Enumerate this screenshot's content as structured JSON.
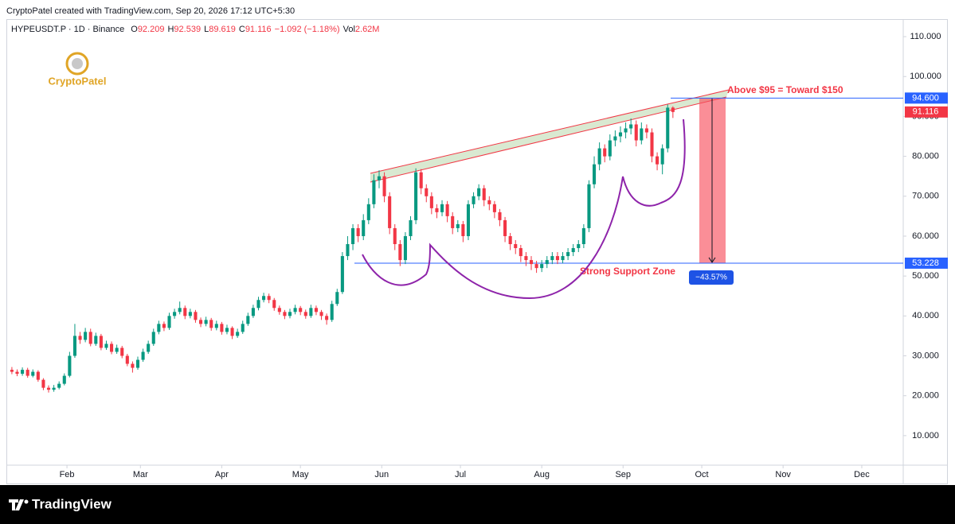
{
  "credit": "CryptoPatel created with TradingView.com, Sep 20, 2026 17:12 UTC+5:30",
  "brand": "CryptoPatel",
  "footer": "TradingView",
  "chart_data": {
    "type": "candlestick",
    "legend": {
      "symbol": "HYPEUSDT.P · 1D · Binance",
      "prefixes": [
        "O",
        "H",
        "L",
        "C"
      ],
      "change": "−1.092 (−1.18%)",
      "vol_label": "Vol",
      "vol": "2.62M"
    },
    "up_color": "#089981",
    "down_color": "#f23645",
    "grid": false,
    "xlim": [
      7.9,
      349.8
    ],
    "ylim": [
      2.6,
      114.4
    ],
    "xticks": [
      {
        "value": 31,
        "label": "Feb"
      },
      {
        "value": 59,
        "label": "Mar"
      },
      {
        "value": 90,
        "label": "Apr"
      },
      {
        "value": 120,
        "label": "May"
      },
      {
        "value": 151,
        "label": "Jun"
      },
      {
        "value": 181,
        "label": "Jul"
      },
      {
        "value": 212,
        "label": "Aug"
      },
      {
        "value": 243,
        "label": "Sep"
      },
      {
        "value": 273,
        "label": "Oct"
      },
      {
        "value": 304,
        "label": "Nov"
      },
      {
        "value": 334,
        "label": "Dec"
      }
    ],
    "yticks": [
      {
        "value": 10,
        "label": "10.000"
      },
      {
        "value": 20,
        "label": "20.000"
      },
      {
        "value": 30,
        "label": "30.000"
      },
      {
        "value": 40,
        "label": "40.000"
      },
      {
        "value": 50,
        "label": "50.000"
      },
      {
        "value": 60,
        "label": "60.000"
      },
      {
        "value": 70,
        "label": "70.000"
      },
      {
        "value": 80,
        "label": "80.000"
      },
      {
        "value": 90,
        "label": "90.000"
      },
      {
        "value": 100,
        "label": "100.000"
      },
      {
        "value": 110,
        "label": "110.000"
      }
    ],
    "x": [
      10,
      12,
      14,
      16,
      18,
      20,
      22,
      24,
      26,
      28,
      30,
      32,
      34,
      36,
      38,
      40,
      42,
      44,
      46,
      48,
      50,
      52,
      54,
      56,
      58,
      60,
      62,
      64,
      66,
      68,
      70,
      72,
      74,
      76,
      78,
      80,
      82,
      84,
      86,
      88,
      90,
      92,
      94,
      96,
      98,
      100,
      102,
      104,
      106,
      108,
      110,
      112,
      114,
      116,
      118,
      120,
      122,
      124,
      126,
      128,
      130,
      132,
      134,
      136,
      138,
      140,
      142,
      144,
      146,
      148,
      150,
      152,
      154,
      156,
      158,
      160,
      162,
      164,
      166,
      168,
      170,
      172,
      174,
      176,
      178,
      180,
      182,
      184,
      186,
      188,
      190,
      192,
      194,
      196,
      198,
      200,
      202,
      204,
      206,
      208,
      210,
      212,
      214,
      216,
      218,
      220,
      222,
      224,
      226,
      228,
      230,
      232,
      234,
      236,
      238,
      240,
      242,
      244,
      246,
      248,
      250,
      252,
      254,
      256,
      258,
      260,
      262
    ],
    "ohlc": [
      [
        26.5,
        27.2,
        25.4,
        26
      ],
      [
        26,
        26.6,
        24.9,
        25.5
      ],
      [
        25.5,
        27.1,
        25,
        26.5
      ],
      [
        26.5,
        27,
        24.5,
        25
      ],
      [
        25,
        26.6,
        24.6,
        26
      ],
      [
        26,
        26.4,
        23.5,
        24
      ],
      [
        24,
        24.4,
        21.4,
        22
      ],
      [
        22,
        22.6,
        20.8,
        21.5
      ],
      [
        21.5,
        22.7,
        21,
        22
      ],
      [
        22,
        23.6,
        21.6,
        23
      ],
      [
        23,
        25.6,
        22.6,
        25
      ],
      [
        25,
        31,
        24.6,
        30
      ],
      [
        30,
        38,
        29.5,
        35
      ],
      [
        35,
        36,
        33,
        34
      ],
      [
        34,
        37,
        33.4,
        36
      ],
      [
        36,
        36.8,
        32.4,
        33
      ],
      [
        33,
        35.8,
        32.5,
        35
      ],
      [
        35,
        35.5,
        31.4,
        32
      ],
      [
        32,
        33.8,
        31.5,
        33
      ],
      [
        33,
        33.6,
        30.4,
        31
      ],
      [
        31,
        32.8,
        30.5,
        32
      ],
      [
        32,
        32.5,
        29.4,
        30
      ],
      [
        30,
        30.5,
        27.4,
        28
      ],
      [
        28,
        28.6,
        25.8,
        27
      ],
      [
        27,
        29.8,
        26.5,
        29
      ],
      [
        29,
        31.8,
        28.5,
        31
      ],
      [
        31,
        33.8,
        30.5,
        33
      ],
      [
        33,
        36.8,
        32.5,
        36
      ],
      [
        36,
        38.8,
        35.4,
        38
      ],
      [
        38,
        38.6,
        36.2,
        37
      ],
      [
        37,
        40.8,
        36.5,
        40
      ],
      [
        40,
        41.8,
        39.3,
        41
      ],
      [
        41,
        43.6,
        40.4,
        42
      ],
      [
        42,
        42.6,
        39.2,
        40
      ],
      [
        40,
        41.8,
        39.4,
        41
      ],
      [
        41,
        41.5,
        38.3,
        39
      ],
      [
        39,
        39.6,
        37.2,
        38
      ],
      [
        38,
        39.8,
        37.4,
        39
      ],
      [
        39,
        39.5,
        36.3,
        37
      ],
      [
        37,
        38.8,
        36.4,
        38
      ],
      [
        38,
        38.5,
        35.3,
        36
      ],
      [
        36,
        37.8,
        35.4,
        37
      ],
      [
        37,
        37.4,
        34.2,
        35
      ],
      [
        35,
        36.8,
        34.5,
        36
      ],
      [
        36,
        38.8,
        35.5,
        38
      ],
      [
        38,
        40.8,
        37.5,
        40
      ],
      [
        40,
        42.8,
        39.5,
        42
      ],
      [
        42,
        44.8,
        41.4,
        44
      ],
      [
        44,
        45.8,
        43.4,
        45
      ],
      [
        45,
        45.6,
        43.2,
        44
      ],
      [
        44,
        44.5,
        41.3,
        42
      ],
      [
        42,
        42.6,
        40.3,
        41
      ],
      [
        41,
        41.5,
        39.2,
        40
      ],
      [
        40,
        41.8,
        39.4,
        41
      ],
      [
        41,
        42.8,
        40.4,
        42
      ],
      [
        42,
        42.5,
        40.2,
        41
      ],
      [
        41,
        41.6,
        39.3,
        40
      ],
      [
        40,
        42.8,
        39.5,
        42
      ],
      [
        42,
        42.6,
        40.2,
        41
      ],
      [
        41,
        41.5,
        39,
        40
      ],
      [
        40,
        40.6,
        37.8,
        39
      ],
      [
        39,
        43.8,
        38.5,
        43
      ],
      [
        43,
        46.8,
        42.5,
        46
      ],
      [
        46,
        56,
        45.5,
        55
      ],
      [
        55,
        60,
        54,
        58
      ],
      [
        58,
        63,
        56.5,
        62
      ],
      [
        62,
        63,
        58.5,
        60
      ],
      [
        60,
        65.5,
        59,
        64
      ],
      [
        64,
        69.5,
        63,
        68
      ],
      [
        68,
        75.5,
        67,
        74
      ],
      [
        74,
        76.5,
        72,
        75
      ],
      [
        75,
        76,
        68.5,
        70
      ],
      [
        70,
        71,
        60.5,
        62
      ],
      [
        62,
        63,
        56.5,
        58
      ],
      [
        58,
        59,
        52.5,
        54
      ],
      [
        54,
        61,
        53,
        60
      ],
      [
        60,
        65,
        59,
        64
      ],
      [
        64,
        77,
        63,
        76
      ],
      [
        76,
        76.8,
        70.5,
        72
      ],
      [
        72,
        73,
        68.5,
        70
      ],
      [
        70,
        71,
        65.5,
        67
      ],
      [
        67,
        68,
        64.5,
        66
      ],
      [
        66,
        69,
        65,
        68
      ],
      [
        68,
        68.8,
        63.5,
        65
      ],
      [
        65,
        66,
        60.5,
        62
      ],
      [
        62,
        64,
        61,
        63
      ],
      [
        63,
        63.8,
        58.5,
        60
      ],
      [
        60,
        69,
        59,
        68
      ],
      [
        68,
        71,
        67,
        70
      ],
      [
        70,
        73,
        69,
        72
      ],
      [
        72,
        72.8,
        67.5,
        69
      ],
      [
        69,
        70,
        66.5,
        68
      ],
      [
        68,
        68.8,
        64.5,
        66
      ],
      [
        66,
        66.8,
        62.5,
        64
      ],
      [
        64,
        64.8,
        58.5,
        60
      ],
      [
        60,
        60.8,
        56.5,
        58
      ],
      [
        58,
        59,
        55.5,
        57
      ],
      [
        57,
        57.8,
        53.5,
        55
      ],
      [
        55,
        56,
        52.5,
        54
      ],
      [
        54,
        55,
        51.5,
        53
      ],
      [
        53,
        53.8,
        50.8,
        52
      ],
      [
        52,
        54,
        51,
        53
      ],
      [
        53,
        55,
        52,
        54
      ],
      [
        54,
        56,
        53,
        55
      ],
      [
        55,
        56,
        53,
        54
      ],
      [
        54,
        56,
        53.2,
        55
      ],
      [
        55,
        57,
        54,
        56
      ],
      [
        56,
        58,
        55,
        57
      ],
      [
        57,
        59,
        56,
        58
      ],
      [
        58,
        63,
        57,
        62
      ],
      [
        62,
        74,
        61,
        73
      ],
      [
        73,
        80,
        72,
        78
      ],
      [
        78,
        83.5,
        76.5,
        82
      ],
      [
        82,
        83,
        78.5,
        80
      ],
      [
        80,
        85.5,
        79,
        84
      ],
      [
        84,
        86.5,
        82.5,
        85
      ],
      [
        85,
        87.5,
        83.5,
        86
      ],
      [
        86,
        88.5,
        84.5,
        87
      ],
      [
        87,
        89.5,
        85.5,
        88
      ],
      [
        88,
        89,
        82.5,
        84
      ],
      [
        84,
        88.5,
        83,
        87
      ],
      [
        87,
        88,
        84.5,
        86
      ],
      [
        86,
        87,
        78.5,
        80
      ],
      [
        80,
        81,
        76.5,
        78
      ],
      [
        78,
        83,
        75.5,
        82
      ],
      [
        82,
        93,
        81,
        92.2
      ],
      [
        92.209,
        92.539,
        89.619,
        91.116
      ]
    ],
    "price_lines": [
      {
        "value": 94.6,
        "label": "94.600",
        "color": "#2962ff"
      },
      {
        "value": 53.228,
        "label": "53.228",
        "color": "#2962ff"
      }
    ],
    "measure_label": "−43.57%",
    "annotations": [
      "Above $95 = Toward $150",
      "Strong Support Zone"
    ]
  }
}
